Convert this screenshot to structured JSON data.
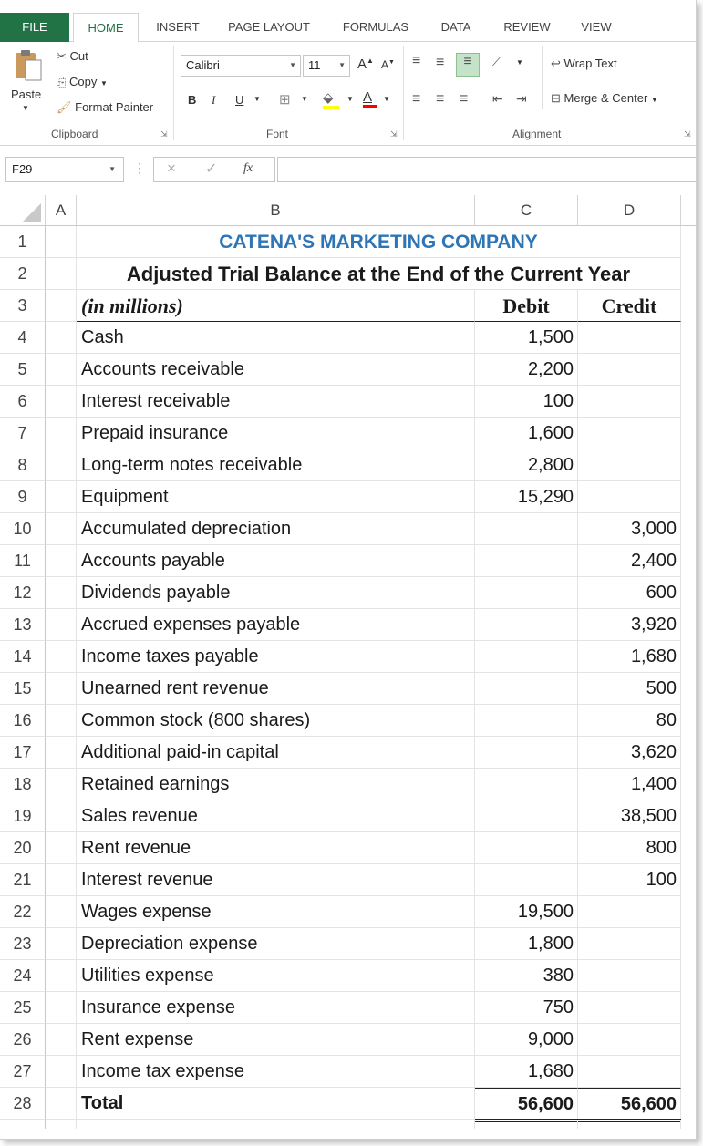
{
  "ribbon": {
    "tabs": [
      {
        "label": "FILE"
      },
      {
        "label": "HOME"
      },
      {
        "label": "INSERT"
      },
      {
        "label": "PAGE LAYOUT"
      },
      {
        "label": "FORMULAS"
      },
      {
        "label": "DATA"
      },
      {
        "label": "REVIEW"
      },
      {
        "label": "VIEW"
      }
    ],
    "clipboard": {
      "paste": "Paste",
      "cut": "Cut",
      "copy": "Copy",
      "format_painter": "Format Painter",
      "label": "Clipboard"
    },
    "font": {
      "name": "Calibri",
      "size": "11",
      "grow": "A",
      "shrink": "A",
      "bold": "B",
      "italic": "I",
      "underline": "U",
      "font_color_letter": "A",
      "label": "Font"
    },
    "alignment": {
      "wrap_text": "Wrap Text",
      "merge_center": "Merge & Center",
      "label": "Alignment"
    },
    "colors": {
      "accent": "#217346",
      "title": "#2e75b6",
      "highlight": "#ffff00",
      "font_red": "#ff0000"
    }
  },
  "formula_bar": {
    "name_box": "F29",
    "fx": "fx",
    "cancel": "×",
    "enter": "✓",
    "content": ""
  },
  "sheet": {
    "columns": [
      "A",
      "B",
      "C",
      "D"
    ],
    "title": "CATENA'S MARKETING COMPANY",
    "subtitle": "Adjusted Trial Balance at the End of the Current Year",
    "units": "(in millions)",
    "debit_header": "Debit",
    "credit_header": "Credit",
    "rows": [
      {
        "num": "1"
      },
      {
        "num": "2"
      },
      {
        "num": "3"
      },
      {
        "num": "4",
        "account": "Cash",
        "debit": "1,500",
        "credit": ""
      },
      {
        "num": "5",
        "account": "Accounts receivable",
        "debit": "2,200",
        "credit": ""
      },
      {
        "num": "6",
        "account": "Interest receivable",
        "debit": "100",
        "credit": ""
      },
      {
        "num": "7",
        "account": "Prepaid insurance",
        "debit": "1,600",
        "credit": ""
      },
      {
        "num": "8",
        "account": "Long-term notes receivable",
        "debit": "2,800",
        "credit": ""
      },
      {
        "num": "9",
        "account": "Equipment",
        "debit": "15,290",
        "credit": ""
      },
      {
        "num": "10",
        "account": "Accumulated depreciation",
        "debit": "",
        "credit": "3,000"
      },
      {
        "num": "11",
        "account": "Accounts payable",
        "debit": "",
        "credit": "2,400"
      },
      {
        "num": "12",
        "account": "Dividends payable",
        "debit": "",
        "credit": "600"
      },
      {
        "num": "13",
        "account": "Accrued expenses payable",
        "debit": "",
        "credit": "3,920"
      },
      {
        "num": "14",
        "account": "Income taxes payable",
        "debit": "",
        "credit": "1,680"
      },
      {
        "num": "15",
        "account": "Unearned rent revenue",
        "debit": "",
        "credit": "500"
      },
      {
        "num": "16",
        "account": "Common stock (800 shares)",
        "debit": "",
        "credit": "80"
      },
      {
        "num": "17",
        "account": "Additional paid-in capital",
        "debit": "",
        "credit": "3,620"
      },
      {
        "num": "18",
        "account": "Retained earnings",
        "debit": "",
        "credit": "1,400"
      },
      {
        "num": "19",
        "account": "Sales revenue",
        "debit": "",
        "credit": "38,500"
      },
      {
        "num": "20",
        "account": "Rent revenue",
        "debit": "",
        "credit": "800"
      },
      {
        "num": "21",
        "account": "Interest revenue",
        "debit": "",
        "credit": "100"
      },
      {
        "num": "22",
        "account": "Wages expense",
        "debit": "19,500",
        "credit": ""
      },
      {
        "num": "23",
        "account": "Depreciation expense",
        "debit": "1,800",
        "credit": ""
      },
      {
        "num": "24",
        "account": "Utilities expense",
        "debit": "380",
        "credit": ""
      },
      {
        "num": "25",
        "account": "Insurance expense",
        "debit": "750",
        "credit": ""
      },
      {
        "num": "26",
        "account": "Rent expense",
        "debit": "9,000",
        "credit": ""
      },
      {
        "num": "27",
        "account": "Income tax expense",
        "debit": "1,680",
        "credit": ""
      },
      {
        "num": "28",
        "account": "Total",
        "debit": "56,600",
        "credit": "56,600"
      }
    ]
  }
}
